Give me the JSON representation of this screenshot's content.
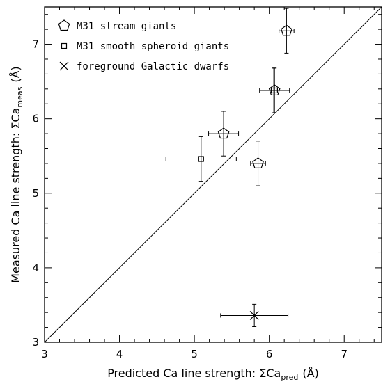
{
  "chart_data": {
    "type": "scatter",
    "xlabel": {
      "main": "Predicted Ca line strength: ΣCa",
      "sub": "pred",
      "unit": "(Å)"
    },
    "ylabel": {
      "main": "Measured Ca line strength: ΣCa",
      "sub": "meas",
      "unit": "(Å)"
    },
    "xlim": [
      3,
      7.5
    ],
    "ylim": [
      3,
      7.5
    ],
    "xticks": [
      3,
      4,
      5,
      6,
      7
    ],
    "yticks": [
      3,
      4,
      5,
      6,
      7
    ],
    "legend_position": "top-left",
    "reference_line": {
      "type": "one-to-one",
      "from": [
        3,
        3
      ],
      "to": [
        7.5,
        7.5
      ]
    },
    "series": [
      {
        "name": "M31 stream giants",
        "marker": "pentagon",
        "points": [
          {
            "x": 6.23,
            "y": 7.18,
            "xerr": 0.1,
            "yerr": 0.3
          },
          {
            "x": 6.07,
            "y": 6.38,
            "xerr": 0.2,
            "yerr": 0.3
          },
          {
            "x": 5.39,
            "y": 5.8,
            "xerr": 0.2,
            "yerr": 0.3
          },
          {
            "x": 5.85,
            "y": 5.4,
            "xerr": 0.1,
            "yerr": 0.3
          }
        ]
      },
      {
        "name": "M31 smooth spheroid giants",
        "marker": "square",
        "points": [
          {
            "x": 6.06,
            "y": 6.38,
            "xerr": 0.05,
            "yerr": 0.3
          },
          {
            "x": 5.09,
            "y": 5.46,
            "xerr": 0.47,
            "yerr": 0.3
          }
        ]
      },
      {
        "name": "foreground Galactic dwarfs",
        "marker": "cross",
        "points": [
          {
            "x": 5.8,
            "y": 3.36,
            "xerr": 0.45,
            "yerr": 0.15
          }
        ]
      }
    ]
  }
}
